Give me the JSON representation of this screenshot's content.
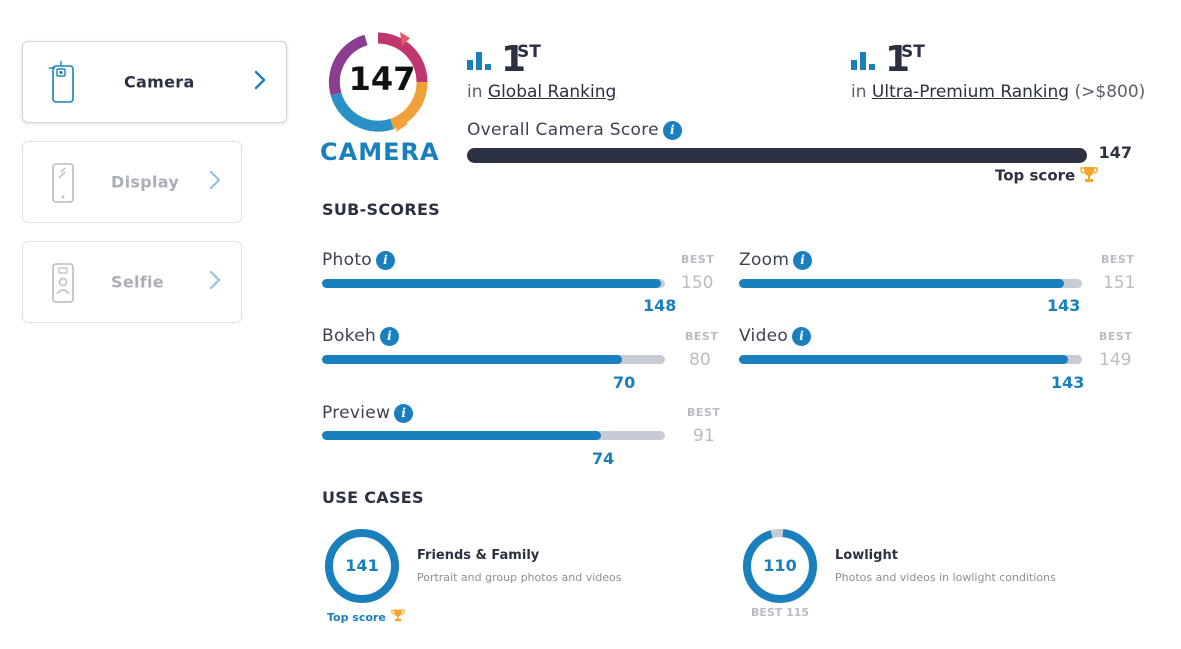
{
  "sidebar": {
    "tabs": [
      {
        "label": "Camera",
        "icon": "camera-phone-icon",
        "active": true
      },
      {
        "label": "Display",
        "icon": "display-phone-icon",
        "active": false
      },
      {
        "label": "Selfie",
        "icon": "selfie-phone-icon",
        "active": false
      }
    ]
  },
  "badge": {
    "score": "147",
    "label": "CAMERA"
  },
  "rankings": [
    {
      "rank": "1",
      "suffix": "ST",
      "prefix": "in",
      "link": "Global Ranking",
      "extra": ""
    },
    {
      "rank": "1",
      "suffix": "ST",
      "prefix": "in",
      "link": "Ultra-Premium Ranking",
      "extra": "(>$800)"
    }
  ],
  "overall": {
    "label": "Overall Camera Score",
    "score": "147",
    "top_label": "Top score"
  },
  "subscores": {
    "title": "SUB-SCORES",
    "best_label": "BEST",
    "items": [
      {
        "name": "Photo",
        "score": "148",
        "best": "150",
        "fraction": 0.987
      },
      {
        "name": "Zoom",
        "score": "143",
        "best": "151",
        "fraction": 0.947
      },
      {
        "name": "Bokeh",
        "score": "70",
        "best": "80",
        "fraction": 0.875
      },
      {
        "name": "Video",
        "score": "143",
        "best": "149",
        "fraction": 0.96
      },
      {
        "name": "Preview",
        "score": "74",
        "best": "91",
        "fraction": 0.813
      }
    ]
  },
  "use_cases": {
    "title": "USE CASES",
    "items": [
      {
        "score": "141",
        "fraction": 1.0,
        "title": "Friends & Family",
        "desc": "Portrait and group photos and videos",
        "footer": "Top score"
      },
      {
        "score": "110",
        "fraction": 0.957,
        "title": "Lowlight",
        "desc": "Photos and videos in lowlight conditions",
        "footer": "BEST 115"
      }
    ]
  },
  "colors": {
    "accent": "#1a80bd",
    "dark": "#2b3140",
    "track": "#c6cbd6",
    "muted": "#b8bcc5",
    "trophy": "#f2a72c"
  }
}
